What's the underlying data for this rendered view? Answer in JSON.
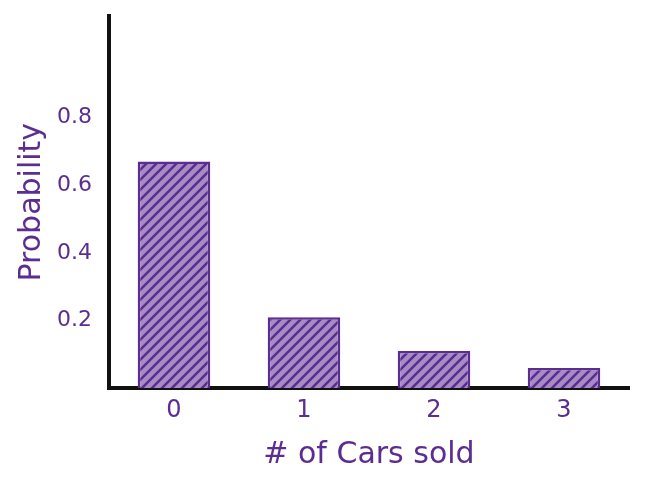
{
  "chart_data": {
    "type": "bar",
    "x_label": "# of Cars sold",
    "y_label": "Probability",
    "categories": [
      "0",
      "1",
      "2",
      "3"
    ],
    "values": [
      0.67,
      0.21,
      0.11,
      0.06
    ],
    "color": "#5c2d91",
    "ylim": [
      0,
      1.1
    ],
    "yticks": [
      0.2,
      0.4,
      0.6,
      0.8
    ],
    "grid": false
  }
}
